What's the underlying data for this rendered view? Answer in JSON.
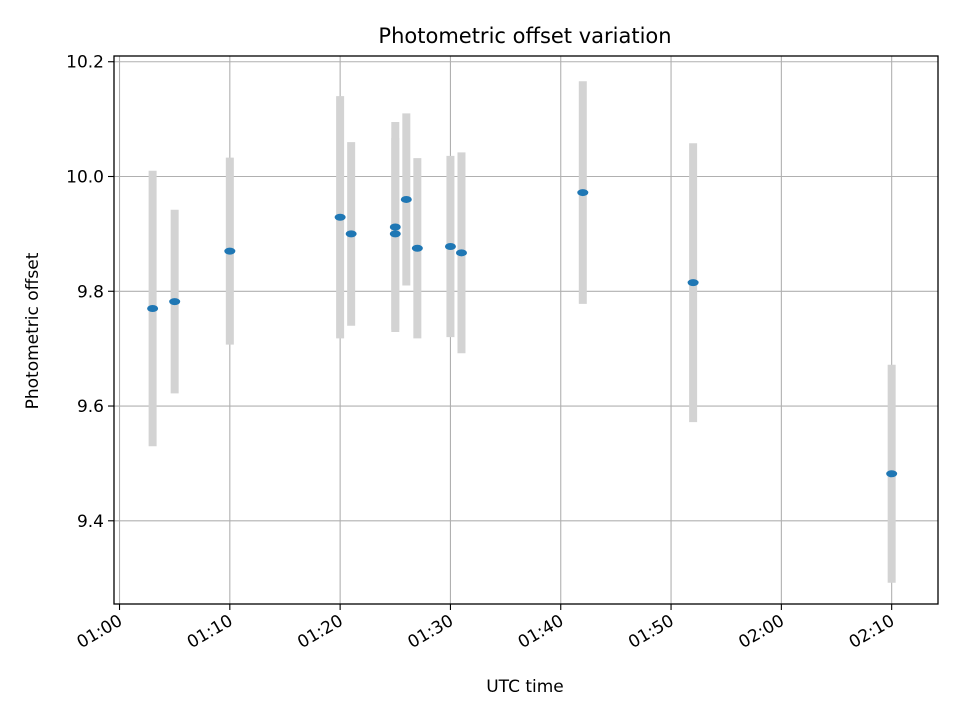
{
  "chart_data": {
    "type": "scatter",
    "title": "Photometric offset variation",
    "xlabel": "UTC time",
    "ylabel": "Photometric offset",
    "x_ticks": [
      "01:00",
      "01:10",
      "01:20",
      "01:30",
      "01:40",
      "01:50",
      "02:00",
      "02:10"
    ],
    "x_range_minutes": [
      -0.5,
      74.2
    ],
    "y_ticks": [
      "9.4",
      "9.6",
      "9.8",
      "10.0",
      "10.2"
    ],
    "ylim": [
      9.255,
      10.21
    ],
    "grid": true,
    "x": [
      "01:03",
      "01:05",
      "01:10",
      "01:20",
      "01:21",
      "01:25",
      "01:25",
      "01:26",
      "01:27",
      "01:30",
      "01:31",
      "01:42",
      "01:52",
      "02:10"
    ],
    "y": [
      9.77,
      9.782,
      9.87,
      9.929,
      9.9,
      9.9,
      9.912,
      9.96,
      9.875,
      9.878,
      9.867,
      9.972,
      9.815,
      9.482
    ],
    "error": [
      0.24,
      0.16,
      0.163,
      0.211,
      0.16,
      0.167,
      0.183,
      0.15,
      0.157,
      0.158,
      0.175,
      0.194,
      0.243,
      0.19
    ],
    "colors": {
      "marker": "#1f77b4",
      "errorbar": "#d3d3d3",
      "grid": "#b0b0b0",
      "axes": "#000000"
    }
  }
}
